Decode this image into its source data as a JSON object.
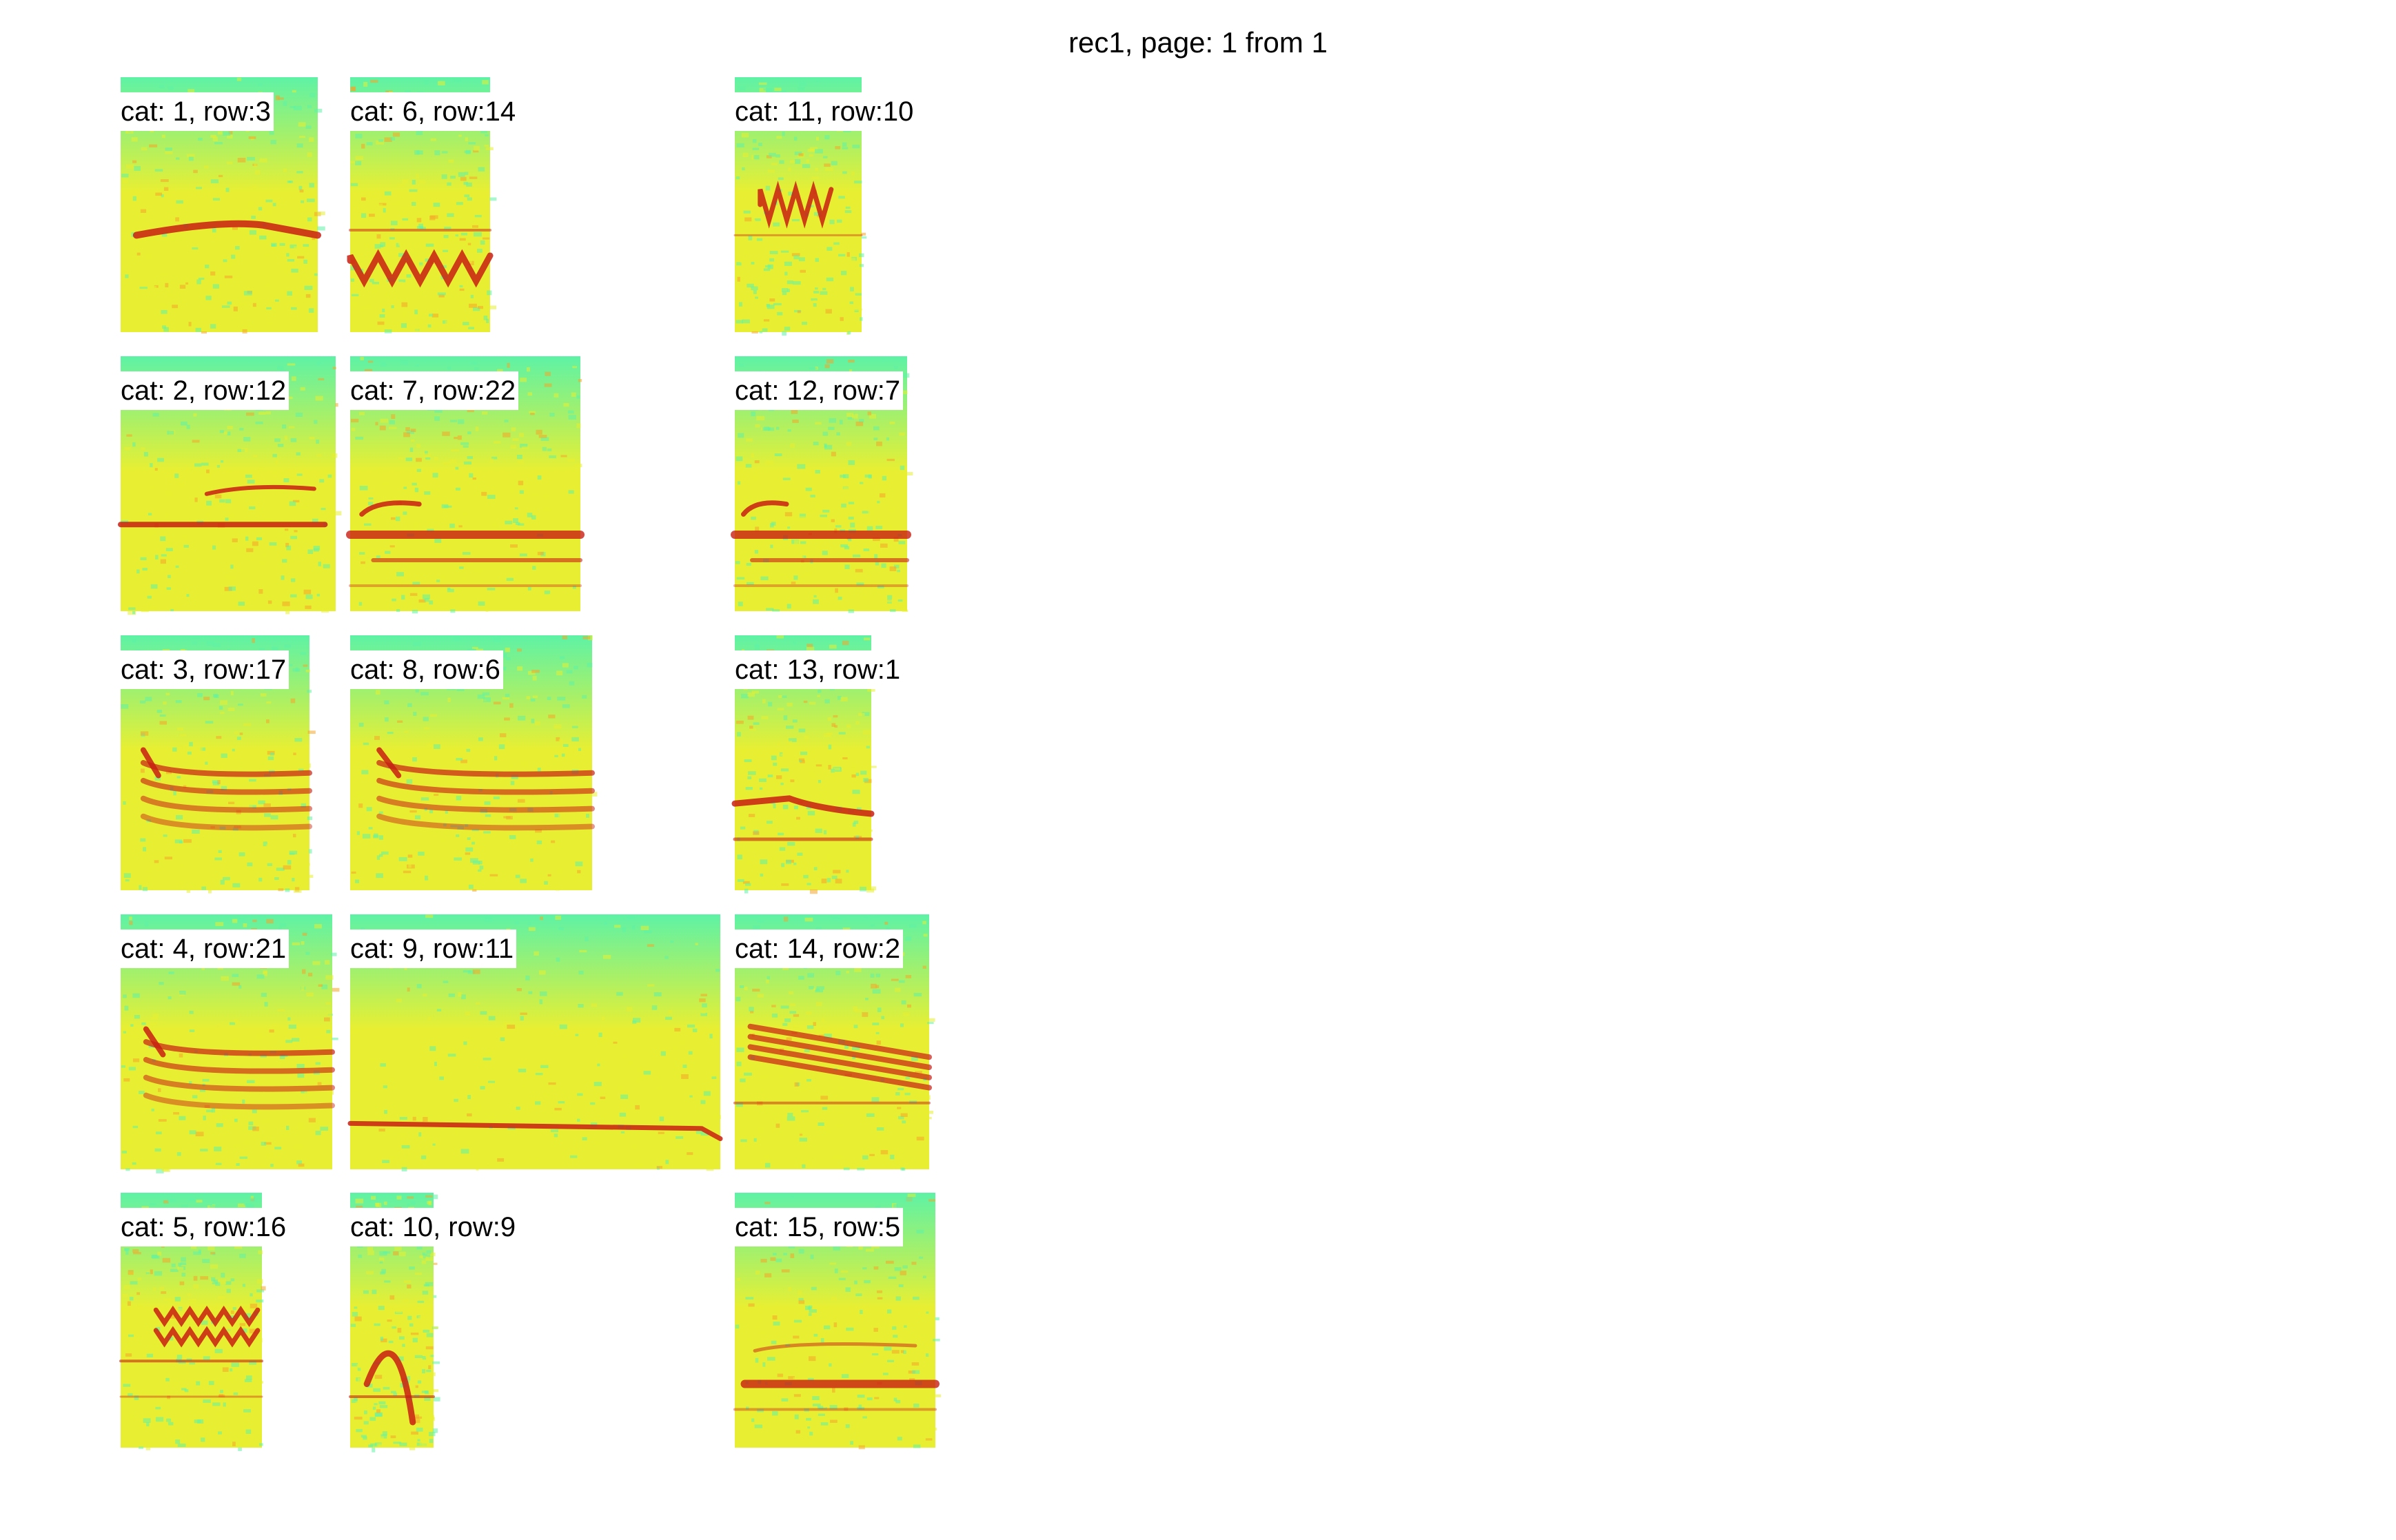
{
  "page_title": "rec1, page: 1 from 1",
  "palette": {
    "background_low": "#5ef2a6",
    "background_mid": "#e8ef32",
    "background_high": "#f4a52a",
    "call": "#c81e12"
  },
  "panels": [
    {
      "id": "cat1",
      "label": "cat: 1, row:3",
      "pattern": "flat-rising"
    },
    {
      "id": "cat2",
      "label": "cat: 2, row:12",
      "pattern": "two-flat"
    },
    {
      "id": "cat3",
      "label": "cat: 3, row:17",
      "pattern": "stacked-harmonics"
    },
    {
      "id": "cat4",
      "label": "cat: 4, row:21",
      "pattern": "stacked-harmonics"
    },
    {
      "id": "cat5",
      "label": "cat: 5, row:16",
      "pattern": "wavy"
    },
    {
      "id": "cat6",
      "label": "cat: 6, row:14",
      "pattern": "wavy-low"
    },
    {
      "id": "cat7",
      "label": "cat: 7, row:22",
      "pattern": "stacked-low"
    },
    {
      "id": "cat8",
      "label": "cat: 8, row:6",
      "pattern": "stacked-harmonics"
    },
    {
      "id": "cat9",
      "label": "cat: 9, row:11",
      "pattern": "long-flat"
    },
    {
      "id": "cat10",
      "label": "cat: 10, row:9",
      "pattern": "arch"
    },
    {
      "id": "cat11",
      "label": "cat: 11, row:10",
      "pattern": "zigzag-high"
    },
    {
      "id": "cat12",
      "label": "cat: 12, row:7",
      "pattern": "stacked-low"
    },
    {
      "id": "cat13",
      "label": "cat: 13, row:1",
      "pattern": "flat-dip"
    },
    {
      "id": "cat14",
      "label": "cat: 14, row:2",
      "pattern": "descending-band"
    },
    {
      "id": "cat15",
      "label": "cat: 15, row:5",
      "pattern": "low-band"
    }
  ]
}
